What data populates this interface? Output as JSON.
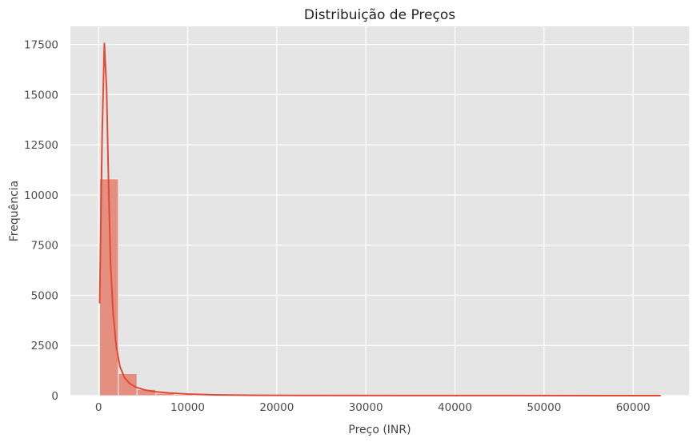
{
  "chart_data": {
    "type": "bar",
    "title": "Distribuição de Preços",
    "xlabel": "Preço (INR)",
    "ylabel": "Frequência",
    "xlim": [
      -3160,
      66270
    ],
    "ylim": [
      0,
      18400
    ],
    "xticks": [
      0,
      10000,
      20000,
      30000,
      40000,
      50000,
      60000
    ],
    "yticks": [
      0,
      2500,
      5000,
      7500,
      10000,
      12500,
      15000,
      17500
    ],
    "grid": true,
    "bars": [
      {
        "x0": 120,
        "x1": 2220,
        "value": 10800
      },
      {
        "x0": 2220,
        "x1": 4320,
        "value": 1100
      },
      {
        "x0": 4320,
        "x1": 6420,
        "value": 310
      },
      {
        "x0": 6420,
        "x1": 8520,
        "value": 120
      },
      {
        "x0": 8520,
        "x1": 10620,
        "value": 60
      },
      {
        "x0": 10620,
        "x1": 12720,
        "value": 30
      },
      {
        "x0": 12720,
        "x1": 14820,
        "value": 15
      },
      {
        "x0": 14820,
        "x1": 16920,
        "value": 8
      }
    ],
    "kde": {
      "x": [
        120,
        400,
        650,
        900,
        1100,
        1350,
        1650,
        2000,
        2400,
        2900,
        3500,
        4200,
        5200,
        6500,
        8000,
        10000,
        13000,
        17000,
        25000,
        40000,
        63100
      ],
      "y": [
        4600,
        13000,
        17550,
        15300,
        11000,
        6500,
        4000,
        2400,
        1450,
        900,
        600,
        420,
        280,
        190,
        130,
        80,
        40,
        20,
        8,
        3,
        1
      ]
    },
    "colors": {
      "bar_fill": "#e58f80",
      "bar_stroke": "#ececec",
      "line": "#e24a33",
      "plot_bg": "#e5e5e5",
      "grid": "#ffffff"
    }
  }
}
